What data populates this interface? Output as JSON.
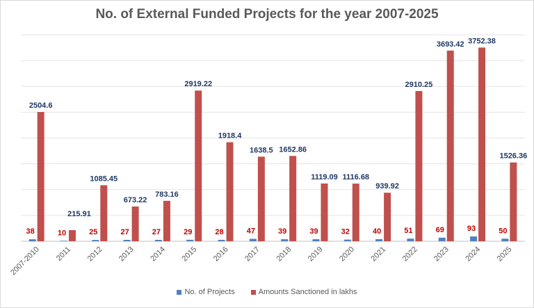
{
  "chart_data": {
    "type": "bar",
    "title": "No. of  External Funded Projects for the year 2007-2025",
    "xlabel": "",
    "ylabel": "",
    "ylim": [
      0,
      4000
    ],
    "grid": true,
    "gridlines": 8,
    "legend_position": "bottom",
    "categories": [
      "2007-2010",
      "2011",
      "2012",
      "2013",
      "2014",
      "2015",
      "2016",
      "2017",
      "2018",
      "2019",
      "2020",
      "2021",
      "2022",
      "2023",
      "2024",
      "2025"
    ],
    "series": [
      {
        "name": "No. of Projects",
        "color": "#4f81bd",
        "label_color": "#c00000",
        "values": [
          38,
          10,
          25,
          27,
          27,
          29,
          28,
          47,
          39,
          39,
          32,
          40,
          51,
          69,
          93,
          50
        ]
      },
      {
        "name": "Amounts Sanctioned in lakhs",
        "color": "#c0504d",
        "label_color": "#1f3864",
        "values": [
          2504.6,
          215.91,
          1085.45,
          673.22,
          783.16,
          2919.22,
          1918.4,
          1638.5,
          1652.86,
          1119.09,
          1116.68,
          939.92,
          2910.25,
          3693.42,
          3752.38,
          1526.36
        ]
      }
    ]
  }
}
